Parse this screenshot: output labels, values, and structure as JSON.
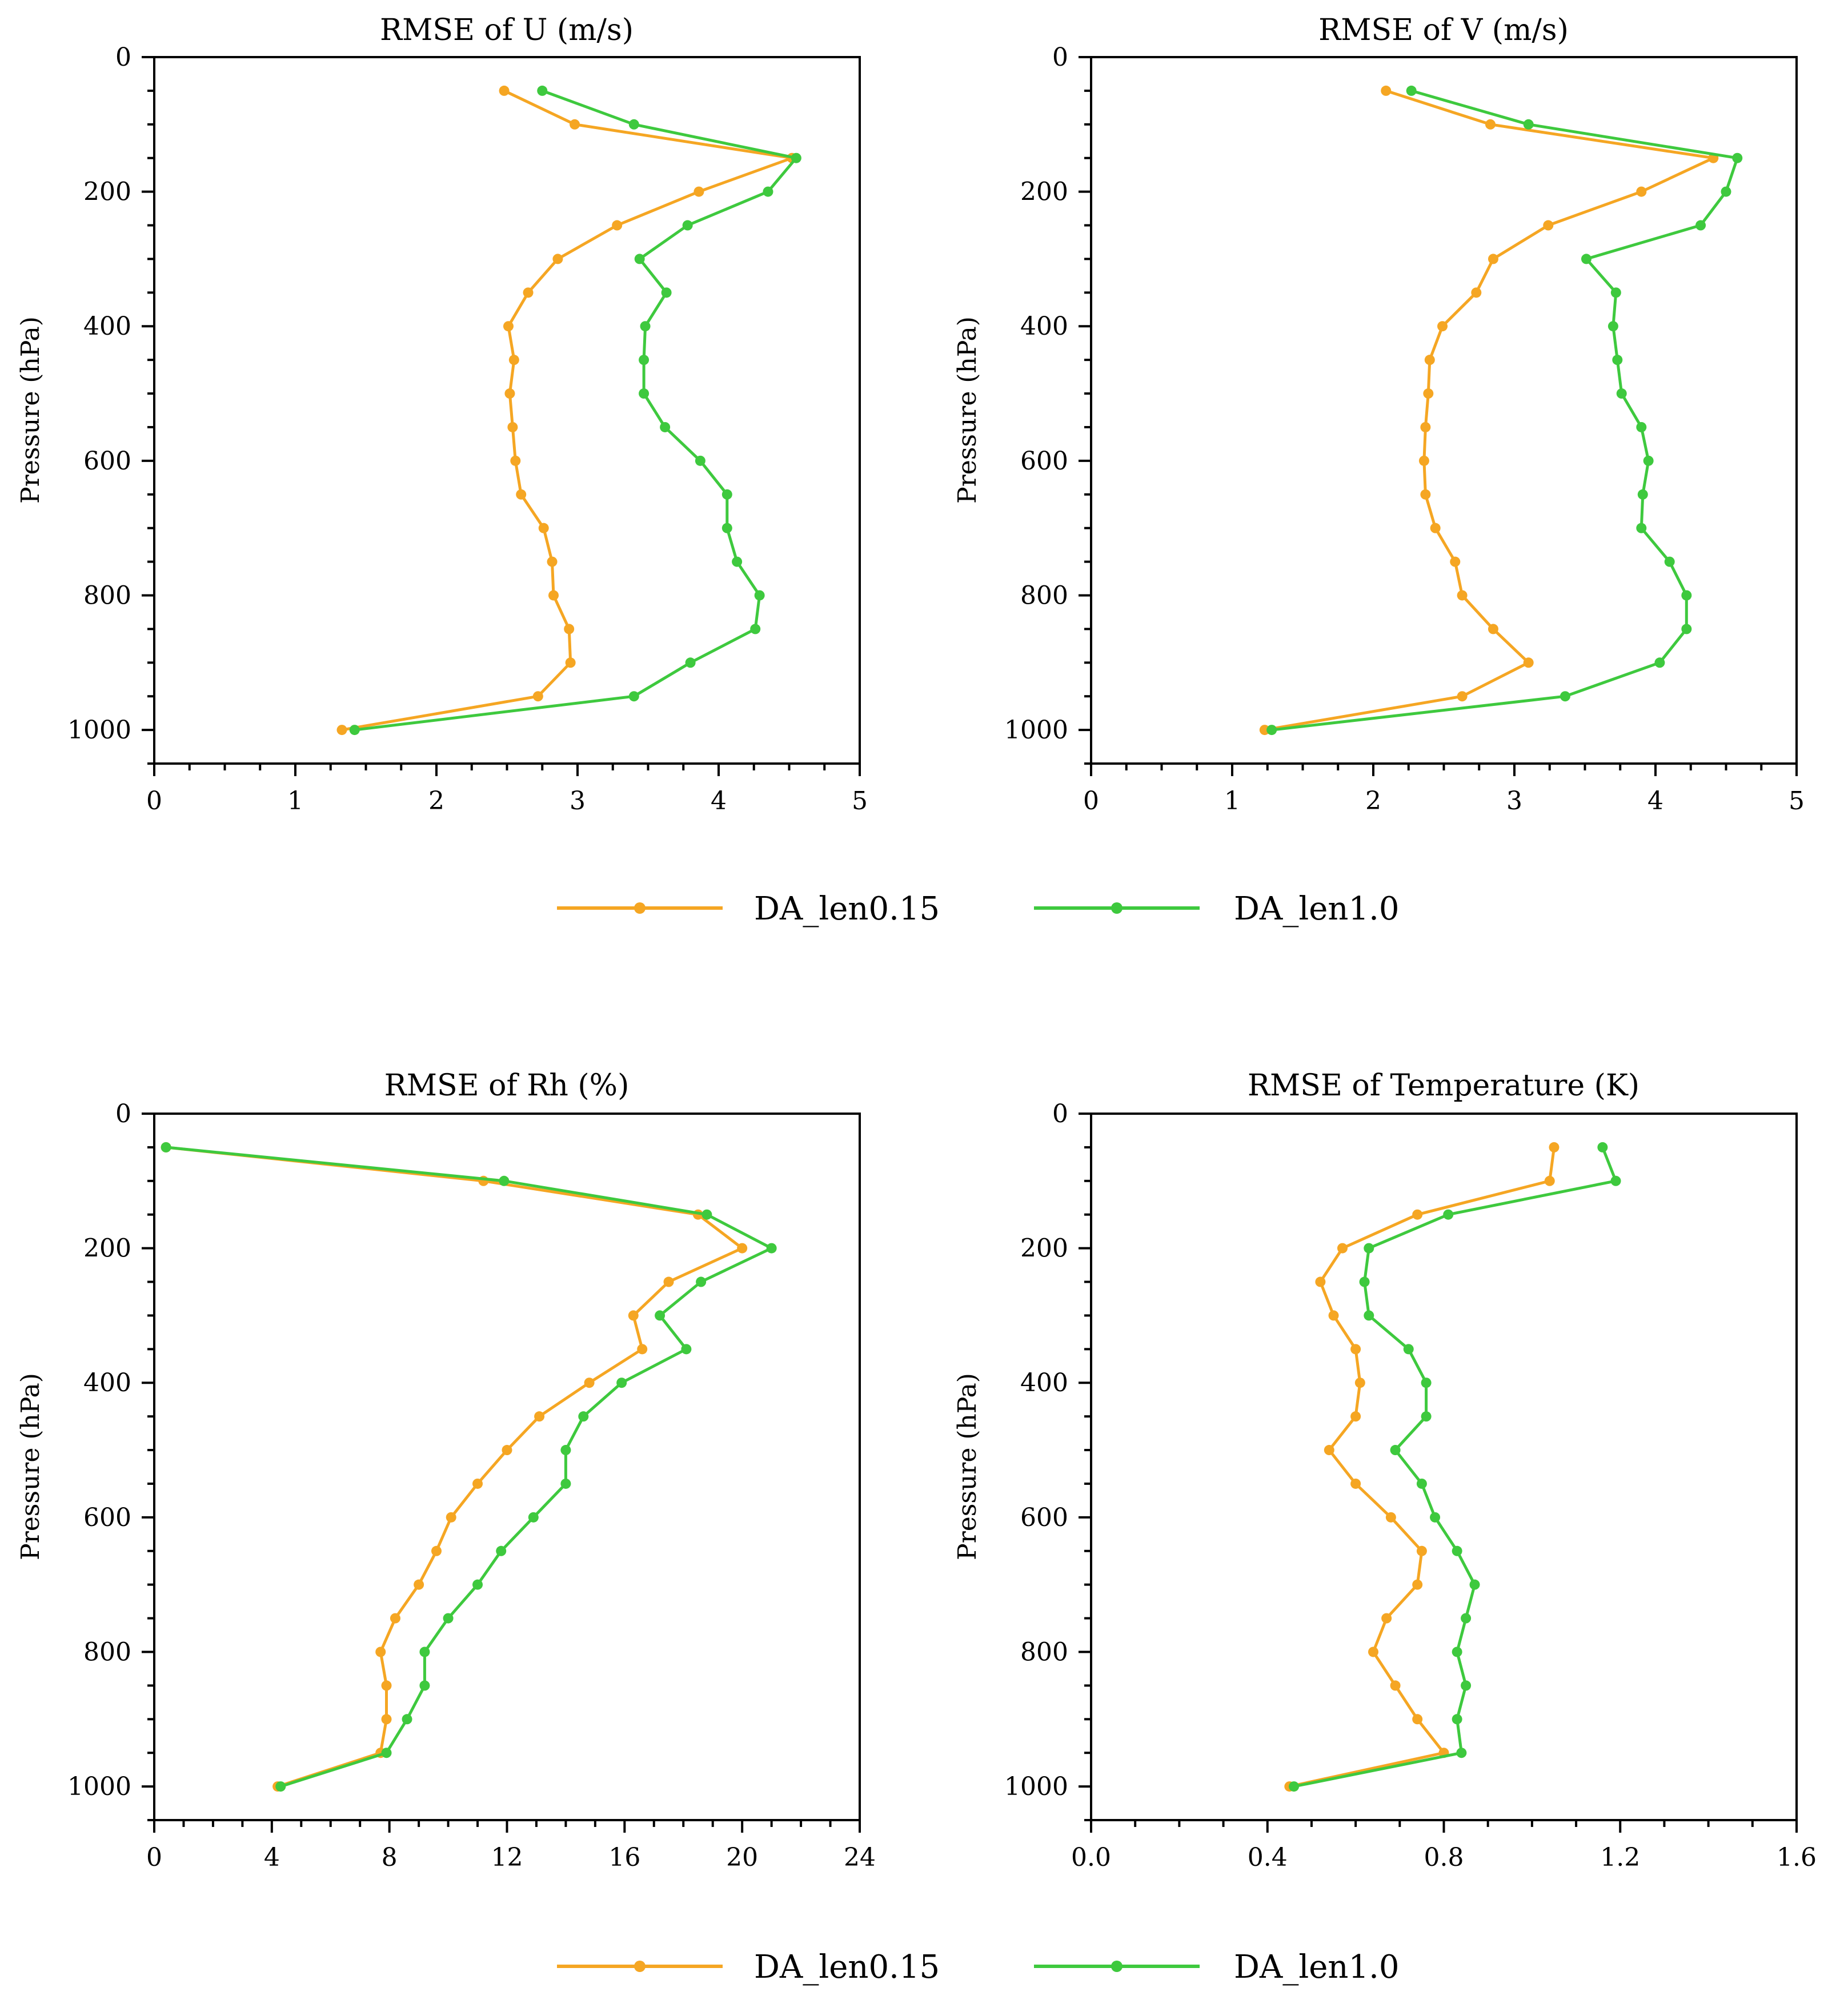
{
  "colors": {
    "orange": "#f5a623",
    "green": "#3ec93e",
    "axis": "#000000"
  },
  "legend": [
    {
      "label": "DA_len0.15",
      "color": "#f5a623"
    },
    {
      "label": "DA_len1.0",
      "color": "#3ec93e"
    }
  ],
  "chart_data": [
    {
      "type": "line",
      "title": "RMSE  of  U (m/s)",
      "xlabel": "",
      "ylabel": "Pressure (hPa)",
      "xlim": [
        0,
        5
      ],
      "ylim": [
        0,
        1050
      ],
      "y_inverted": true,
      "xticks": [
        0,
        1,
        2,
        3,
        4,
        5
      ],
      "xtick_labels": [
        "0",
        "1",
        "2",
        "3",
        "4",
        "5"
      ],
      "yticks": [
        0,
        200,
        400,
        600,
        800,
        1000
      ],
      "ytick_labels": [
        "0",
        "200",
        "400",
        "600",
        "800",
        "1000"
      ],
      "y": [
        50,
        100,
        150,
        200,
        250,
        300,
        350,
        400,
        450,
        500,
        550,
        600,
        650,
        700,
        750,
        800,
        850,
        900,
        950,
        1000
      ],
      "series": [
        {
          "name": "DA_len0.15",
          "values": [
            2.48,
            2.98,
            4.52,
            3.86,
            3.28,
            2.86,
            2.65,
            2.51,
            2.55,
            2.52,
            2.54,
            2.56,
            2.6,
            2.76,
            2.82,
            2.83,
            2.94,
            2.95,
            2.72,
            1.33
          ]
        },
        {
          "name": "DA_len1.0",
          "values": [
            2.75,
            3.4,
            4.55,
            4.35,
            3.78,
            3.44,
            3.63,
            3.48,
            3.47,
            3.47,
            3.62,
            3.87,
            4.06,
            4.06,
            4.13,
            4.29,
            4.26,
            3.8,
            3.4,
            1.42
          ]
        }
      ]
    },
    {
      "type": "line",
      "title": "RMSE  of  V (m/s)",
      "xlabel": "",
      "ylabel": "Pressure (hPa)",
      "xlim": [
        0,
        5
      ],
      "ylim": [
        0,
        1050
      ],
      "y_inverted": true,
      "xticks": [
        0,
        1,
        2,
        3,
        4,
        5
      ],
      "xtick_labels": [
        "0",
        "1",
        "2",
        "3",
        "4",
        "5"
      ],
      "yticks": [
        0,
        200,
        400,
        600,
        800,
        1000
      ],
      "ytick_labels": [
        "0",
        "200",
        "400",
        "600",
        "800",
        "1000"
      ],
      "y": [
        50,
        100,
        150,
        200,
        250,
        300,
        350,
        400,
        450,
        500,
        550,
        600,
        650,
        700,
        750,
        800,
        850,
        900,
        950,
        1000
      ],
      "series": [
        {
          "name": "DA_len0.15",
          "values": [
            2.09,
            2.83,
            4.41,
            3.9,
            3.24,
            2.85,
            2.73,
            2.49,
            2.4,
            2.39,
            2.37,
            2.36,
            2.37,
            2.44,
            2.58,
            2.63,
            2.85,
            3.1,
            2.63,
            1.23
          ]
        },
        {
          "name": "DA_len1.0",
          "values": [
            2.27,
            3.1,
            4.58,
            4.5,
            4.32,
            3.51,
            3.72,
            3.7,
            3.73,
            3.76,
            3.9,
            3.95,
            3.91,
            3.9,
            4.1,
            4.22,
            4.22,
            4.03,
            3.36,
            1.28
          ]
        }
      ]
    },
    {
      "type": "line",
      "title": "RMSE  of  Rh (%)",
      "xlabel": "",
      "ylabel": "Pressure (hPa)",
      "xlim": [
        0,
        24
      ],
      "ylim": [
        0,
        1050
      ],
      "y_inverted": true,
      "xticks": [
        0,
        4,
        8,
        12,
        16,
        20,
        24
      ],
      "xtick_labels": [
        "0",
        "4",
        "8",
        "12",
        "16",
        "20",
        "24"
      ],
      "yticks": [
        0,
        200,
        400,
        600,
        800,
        1000
      ],
      "ytick_labels": [
        "0",
        "200",
        "400",
        "600",
        "800",
        "1000"
      ],
      "y": [
        50,
        100,
        150,
        200,
        250,
        300,
        350,
        400,
        450,
        500,
        550,
        600,
        650,
        700,
        750,
        800,
        850,
        900,
        950,
        1000
      ],
      "series": [
        {
          "name": "DA_len0.15",
          "values": [
            0.4,
            11.2,
            18.5,
            20.0,
            17.5,
            16.3,
            16.6,
            14.8,
            13.1,
            12.0,
            11.0,
            10.1,
            9.6,
            9.0,
            8.2,
            7.7,
            7.9,
            7.9,
            7.7,
            4.2
          ]
        },
        {
          "name": "DA_len1.0",
          "values": [
            0.4,
            11.9,
            18.8,
            21.0,
            18.6,
            17.2,
            18.1,
            15.9,
            14.6,
            14.0,
            14.0,
            12.9,
            11.8,
            11.0,
            10.0,
            9.2,
            9.2,
            8.6,
            7.9,
            4.3
          ]
        }
      ]
    },
    {
      "type": "line",
      "title": "RMSE  of  Temperature (K)",
      "xlabel": "",
      "ylabel": "Pressure (hPa)",
      "xlim": [
        0,
        1.6
      ],
      "ylim": [
        0,
        1050
      ],
      "y_inverted": true,
      "xticks": [
        0,
        0.4,
        0.8,
        1.2,
        1.6
      ],
      "xtick_labels": [
        "0.0",
        "0.4",
        "0.8",
        "1.2",
        "1.6"
      ],
      "yticks": [
        0,
        200,
        400,
        600,
        800,
        1000
      ],
      "ytick_labels": [
        "0",
        "200",
        "400",
        "600",
        "800",
        "1000"
      ],
      "y": [
        50,
        100,
        150,
        200,
        250,
        300,
        350,
        400,
        450,
        500,
        550,
        600,
        650,
        700,
        750,
        800,
        850,
        900,
        950,
        1000
      ],
      "series": [
        {
          "name": "DA_len0.15",
          "values": [
            1.05,
            1.04,
            0.74,
            0.57,
            0.52,
            0.55,
            0.6,
            0.61,
            0.6,
            0.54,
            0.6,
            0.68,
            0.75,
            0.74,
            0.67,
            0.64,
            0.69,
            0.74,
            0.8,
            0.45
          ]
        },
        {
          "name": "DA_len1.0",
          "values": [
            1.16,
            1.19,
            0.81,
            0.63,
            0.62,
            0.63,
            0.72,
            0.76,
            0.76,
            0.69,
            0.75,
            0.78,
            0.83,
            0.87,
            0.85,
            0.83,
            0.85,
            0.83,
            0.84,
            0.46
          ]
        }
      ]
    }
  ]
}
